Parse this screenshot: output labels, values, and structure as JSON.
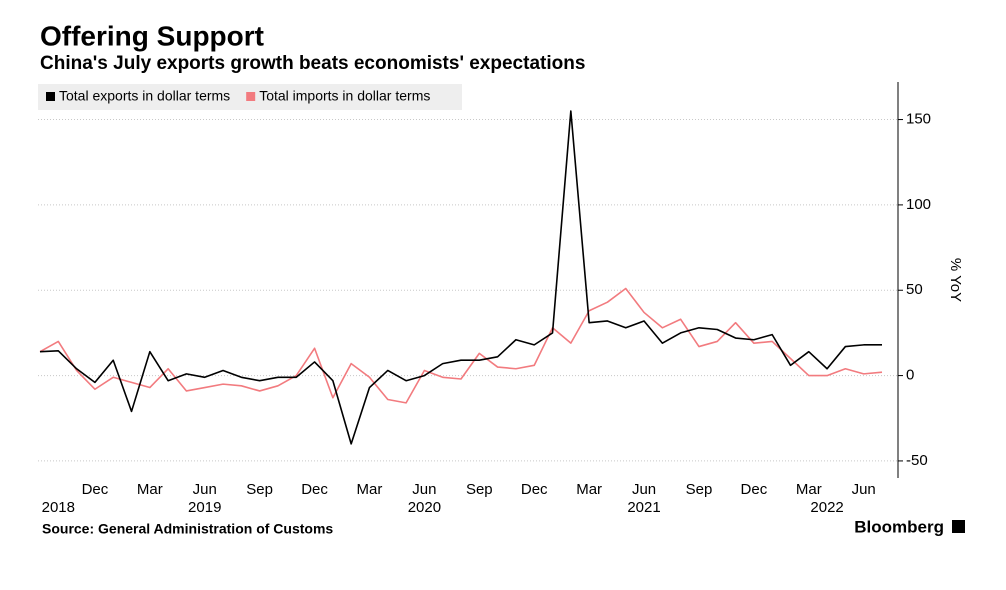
{
  "chart_data": {
    "type": "line",
    "title": "Offering Support",
    "subtitle": "China's July exports growth beats economists' expectations",
    "y_label": "% YoY",
    "source": "Source: General Administration of Customs",
    "brand": "Bloomberg",
    "categories": [
      null,
      null,
      null,
      "Dec",
      null,
      null,
      "Mar",
      null,
      null,
      "Jun",
      null,
      null,
      "Sep",
      null,
      null,
      "Dec",
      null,
      null,
      "Mar",
      null,
      null,
      "Jun",
      null,
      null,
      "Sep",
      null,
      null,
      "Dec",
      null,
      null,
      "Mar",
      null,
      null,
      "Jun",
      null,
      null,
      "Sep",
      null,
      null,
      "Dec",
      null,
      null,
      "Mar",
      null,
      null,
      "Jun",
      null
    ],
    "year_categories": [
      null,
      "2018",
      null,
      null,
      null,
      null,
      null,
      null,
      null,
      "2019",
      null,
      null,
      null,
      null,
      null,
      null,
      null,
      null,
      null,
      null,
      null,
      "2020",
      null,
      null,
      null,
      null,
      null,
      null,
      null,
      null,
      null,
      null,
      null,
      "2021",
      null,
      null,
      null,
      null,
      null,
      null,
      null,
      null,
      null,
      "2022",
      null,
      null,
      null
    ],
    "series": [
      {
        "name": "Total exports in dollar terms",
        "color": "#000000",
        "values": [
          14,
          14.5,
          4,
          -4,
          9,
          -21,
          14,
          -3,
          1,
          -1,
          3,
          -1,
          -3,
          -1,
          -1,
          8,
          -3,
          -40,
          -7,
          3,
          -3,
          0,
          7,
          9,
          9,
          11,
          21,
          18,
          25,
          155,
          31,
          32,
          28,
          32,
          19,
          25,
          28,
          27,
          22,
          21,
          24,
          6,
          14,
          4,
          17,
          18,
          18
        ]
      },
      {
        "name": "Total imports in dollar terms",
        "color": "#f27b7f",
        "values": [
          14,
          20,
          3,
          -8,
          -1,
          -4,
          -7,
          4,
          -9,
          -7,
          -5,
          -6,
          -9,
          -6,
          0,
          16,
          -13,
          7,
          -1,
          -14,
          -16,
          3,
          -1,
          -2,
          13,
          5,
          4,
          6,
          28,
          19,
          38,
          43,
          51,
          37,
          28,
          33,
          17,
          20,
          31,
          19,
          20,
          10,
          0,
          0,
          4,
          1,
          2
        ]
      }
    ],
    "ylim": [
      -60,
      172
    ],
    "yticks": [
      -50,
      0,
      50,
      100,
      150
    ],
    "grid": true,
    "legend": "top-left"
  }
}
